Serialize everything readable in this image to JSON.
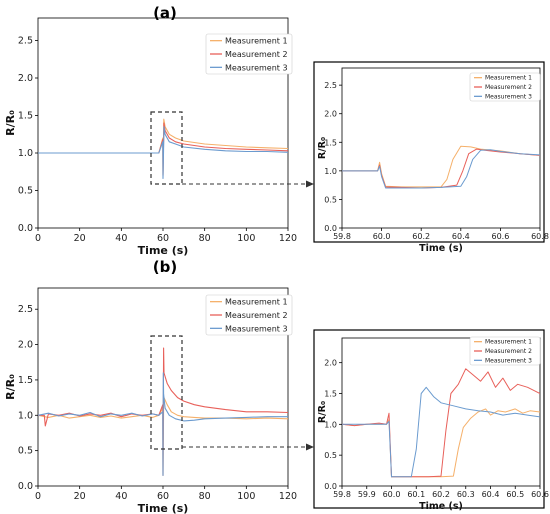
{
  "panels": [
    {
      "label": "(a)"
    },
    {
      "label": "(b)"
    }
  ],
  "colors": {
    "Measurement 1": "#f5b06a",
    "Measurement 2": "#e8605a",
    "Measurement 3": "#6b9bcf"
  },
  "chart_data": [
    {
      "id": "a-main",
      "type": "line",
      "xlabel": "Time (s)",
      "ylabel": "R/R₀",
      "xlim": [
        0,
        120
      ],
      "ylim": [
        0,
        2.8
      ],
      "xticks": [
        0,
        20,
        40,
        60,
        80,
        100,
        120
      ],
      "yticks": [
        0.0,
        0.5,
        1.0,
        1.5,
        2.0,
        2.5
      ],
      "grid": false,
      "legend": "top-right",
      "series": [
        {
          "name": "Measurement 1",
          "x": [
            0,
            10,
            20,
            30,
            40,
            50,
            58,
            59.9,
            60.0,
            60.4,
            61,
            63,
            66,
            70,
            80,
            90,
            100,
            110,
            120
          ],
          "y": [
            1.0,
            1.0,
            1.0,
            1.0,
            1.0,
            1.0,
            1.0,
            1.2,
            0.7,
            1.45,
            1.35,
            1.25,
            1.2,
            1.16,
            1.12,
            1.1,
            1.08,
            1.07,
            1.06
          ]
        },
        {
          "name": "Measurement 2",
          "x": [
            0,
            10,
            20,
            30,
            40,
            50,
            58,
            59.9,
            60.0,
            60.45,
            61,
            63,
            66,
            70,
            80,
            90,
            100,
            110,
            120
          ],
          "y": [
            1.0,
            1.0,
            1.0,
            1.0,
            1.0,
            1.0,
            1.0,
            1.18,
            0.7,
            1.4,
            1.3,
            1.2,
            1.15,
            1.12,
            1.08,
            1.06,
            1.05,
            1.04,
            1.03
          ]
        },
        {
          "name": "Measurement 3",
          "x": [
            0,
            10,
            20,
            30,
            40,
            50,
            58,
            59.9,
            60.0,
            60.5,
            61,
            63,
            66,
            70,
            80,
            90,
            100,
            110,
            120
          ],
          "y": [
            1.0,
            1.0,
            1.0,
            1.0,
            1.0,
            1.0,
            1.0,
            1.15,
            0.66,
            1.35,
            1.25,
            1.15,
            1.12,
            1.08,
            1.05,
            1.03,
            1.02,
            1.02,
            1.01
          ]
        }
      ]
    },
    {
      "id": "a-inset",
      "type": "line",
      "xlabel": "Time (s)",
      "ylabel": "R/R₀",
      "xlim": [
        59.8,
        60.8
      ],
      "ylim": [
        0,
        2.8
      ],
      "xticks": [
        59.8,
        60.0,
        60.2,
        60.4,
        60.6,
        60.8
      ],
      "yticks": [
        0.0,
        0.5,
        1.0,
        1.5,
        2.0,
        2.5
      ],
      "grid": false,
      "legend": "top-right",
      "series": [
        {
          "name": "Measurement 1",
          "x": [
            59.8,
            59.9,
            59.98,
            59.99,
            60.0,
            60.02,
            60.1,
            60.2,
            60.3,
            60.33,
            60.36,
            60.4,
            60.45,
            60.5,
            60.6,
            60.7,
            60.8
          ],
          "y": [
            1.0,
            1.0,
            1.0,
            1.15,
            0.95,
            0.73,
            0.72,
            0.72,
            0.72,
            0.85,
            1.2,
            1.43,
            1.42,
            1.38,
            1.35,
            1.3,
            1.27
          ]
        },
        {
          "name": "Measurement 2",
          "x": [
            59.8,
            59.9,
            59.98,
            59.99,
            60.0,
            60.02,
            60.1,
            60.2,
            60.3,
            60.38,
            60.41,
            60.44,
            60.48,
            60.52,
            60.6,
            60.7,
            60.8
          ],
          "y": [
            1.0,
            1.0,
            1.0,
            1.1,
            0.92,
            0.72,
            0.71,
            0.7,
            0.71,
            0.75,
            1.0,
            1.3,
            1.38,
            1.36,
            1.33,
            1.3,
            1.27
          ]
        },
        {
          "name": "Measurement 3",
          "x": [
            59.8,
            59.9,
            59.98,
            59.99,
            60.0,
            60.02,
            60.1,
            60.2,
            60.3,
            60.4,
            60.43,
            60.46,
            60.5,
            60.55,
            60.6,
            60.7,
            60.8
          ],
          "y": [
            1.0,
            1.0,
            1.0,
            1.08,
            0.9,
            0.7,
            0.7,
            0.7,
            0.71,
            0.73,
            0.9,
            1.2,
            1.36,
            1.37,
            1.34,
            1.3,
            1.28
          ]
        }
      ]
    },
    {
      "id": "b-main",
      "type": "line",
      "xlabel": "Time (s)",
      "ylabel": "R/R₀",
      "xlim": [
        0,
        120
      ],
      "ylim": [
        0,
        2.8
      ],
      "xticks": [
        0,
        20,
        40,
        60,
        80,
        100,
        120
      ],
      "yticks": [
        0.0,
        0.5,
        1.0,
        1.5,
        2.0,
        2.5
      ],
      "grid": false,
      "legend": "top-right",
      "series": [
        {
          "name": "Measurement 1",
          "x": [
            0,
            5,
            10,
            15,
            20,
            25,
            30,
            35,
            40,
            45,
            50,
            55,
            58,
            59.9,
            60.0,
            60.3,
            60.5,
            62,
            64,
            67,
            70,
            75,
            80,
            90,
            100,
            110,
            120
          ],
          "y": [
            1.0,
            0.97,
            1.0,
            0.96,
            0.98,
            1.0,
            0.97,
            0.99,
            0.96,
            0.98,
            1.0,
            0.97,
            1.0,
            1.1,
            0.15,
            1.1,
            1.25,
            1.15,
            1.05,
            1.0,
            0.98,
            0.97,
            0.96,
            0.96,
            0.95,
            0.96,
            0.95
          ]
        },
        {
          "name": "Measurement 2",
          "x": [
            0,
            3,
            3.5,
            5,
            10,
            15,
            20,
            25,
            30,
            35,
            40,
            45,
            50,
            55,
            58,
            59.9,
            60.0,
            60.3,
            60.5,
            62,
            64,
            67,
            70,
            75,
            80,
            90,
            100,
            110,
            120
          ],
          "y": [
            1.0,
            1.0,
            0.85,
            1.02,
            1.0,
            1.03,
            0.99,
            1.02,
            1.0,
            1.03,
            0.98,
            1.02,
            1.0,
            1.02,
            1.0,
            1.15,
            0.15,
            1.95,
            1.6,
            1.45,
            1.35,
            1.25,
            1.2,
            1.15,
            1.12,
            1.08,
            1.05,
            1.05,
            1.04
          ]
        },
        {
          "name": "Measurement 3",
          "x": [
            0,
            5,
            10,
            15,
            20,
            25,
            30,
            35,
            40,
            45,
            50,
            55,
            58,
            59.9,
            60.0,
            60.15,
            60.3,
            61,
            63,
            66,
            70,
            75,
            80,
            90,
            100,
            110,
            120
          ],
          "y": [
            1.0,
            1.03,
            0.99,
            1.02,
            1.0,
            1.04,
            0.98,
            1.02,
            1.0,
            1.03,
            0.99,
            1.02,
            1.0,
            1.05,
            0.15,
            1.6,
            1.3,
            1.1,
            1.0,
            0.95,
            0.92,
            0.93,
            0.95,
            0.96,
            0.97,
            0.98,
            0.98
          ]
        }
      ]
    },
    {
      "id": "b-inset",
      "type": "line",
      "xlabel": "Time (s)",
      "ylabel": "R/R₀",
      "xlim": [
        59.8,
        60.6
      ],
      "ylim": [
        0,
        2.4
      ],
      "xticks": [
        59.8,
        59.9,
        60.0,
        60.1,
        60.2,
        60.3,
        60.4,
        60.5,
        60.6
      ],
      "yticks": [
        0.0,
        0.5,
        1.0,
        1.5,
        2.0
      ],
      "grid": false,
      "legend": "top-right",
      "series": [
        {
          "name": "Measurement 1",
          "x": [
            59.8,
            59.85,
            59.9,
            59.95,
            59.98,
            59.99,
            60.0,
            60.05,
            60.1,
            60.2,
            60.25,
            60.27,
            60.29,
            60.32,
            60.35,
            60.38,
            60.4,
            60.43,
            60.46,
            60.5,
            60.53,
            60.56,
            60.6
          ],
          "y": [
            1.0,
            0.98,
            1.0,
            1.0,
            1.0,
            1.08,
            0.15,
            0.15,
            0.15,
            0.15,
            0.16,
            0.6,
            0.95,
            1.1,
            1.2,
            1.25,
            1.15,
            1.22,
            1.2,
            1.25,
            1.18,
            1.22,
            1.2
          ]
        },
        {
          "name": "Measurement 2",
          "x": [
            59.8,
            59.85,
            59.9,
            59.95,
            59.98,
            59.99,
            60.0,
            60.05,
            60.1,
            60.15,
            60.2,
            60.22,
            60.24,
            60.27,
            60.3,
            60.33,
            60.36,
            60.39,
            60.42,
            60.45,
            60.48,
            60.51,
            60.55,
            60.6
          ],
          "y": [
            1.0,
            0.98,
            1.0,
            1.02,
            1.0,
            1.18,
            0.15,
            0.15,
            0.15,
            0.15,
            0.16,
            0.9,
            1.5,
            1.65,
            1.9,
            1.8,
            1.7,
            1.85,
            1.6,
            1.75,
            1.55,
            1.65,
            1.6,
            1.5
          ]
        },
        {
          "name": "Measurement 3",
          "x": [
            59.8,
            59.85,
            59.9,
            59.95,
            59.98,
            59.99,
            60.0,
            60.03,
            60.06,
            60.08,
            60.1,
            60.12,
            60.14,
            60.17,
            60.2,
            60.25,
            60.3,
            60.35,
            60.4,
            60.45,
            60.5,
            60.55,
            60.6
          ],
          "y": [
            1.0,
            1.0,
            1.0,
            1.0,
            1.0,
            1.05,
            0.15,
            0.15,
            0.15,
            0.15,
            0.6,
            1.5,
            1.6,
            1.45,
            1.35,
            1.3,
            1.25,
            1.22,
            1.2,
            1.15,
            1.18,
            1.15,
            1.12
          ]
        }
      ]
    }
  ]
}
